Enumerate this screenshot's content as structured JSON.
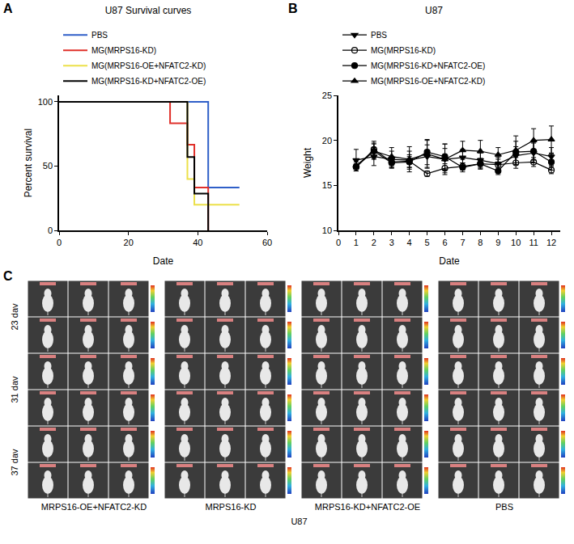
{
  "chart_data": [
    {
      "panel": "A",
      "type": "line",
      "title": "U87 Survival curves",
      "x_label": "Date",
      "y_label": "Percent survival",
      "xlim": [
        0,
        60
      ],
      "xticks": [
        0,
        20,
        40,
        60
      ],
      "ylim": [
        0,
        105
      ],
      "yticks": [
        0,
        50,
        100
      ],
      "line_style": "step",
      "legend": "top left",
      "grid": false,
      "series": [
        {
          "name": "PBS",
          "color": "#2f5fc8",
          "x": [
            0,
            43,
            52
          ],
          "values": [
            100,
            33.3,
            33.3
          ]
        },
        {
          "name": "MG(MRPS16-KD)",
          "color": "#e0302a",
          "x": [
            0,
            32,
            37,
            39,
            43
          ],
          "values": [
            100,
            83.3,
            66.7,
            33.3,
            0
          ]
        },
        {
          "name": "MG(MRPS16-OE+NFATC2-KD)",
          "color": "#ece04a",
          "x": [
            0,
            37,
            39,
            52
          ],
          "values": [
            100,
            40,
            20,
            20
          ]
        },
        {
          "name": "MG(MRPS16-KD+NFATC2-OE)",
          "color": "#000000",
          "x": [
            0,
            37,
            39,
            43
          ],
          "values": [
            100,
            57.1,
            28.6,
            0
          ]
        }
      ]
    },
    {
      "panel": "B",
      "type": "line",
      "title": "U87",
      "x_label": "Date",
      "y_label": "Weight",
      "xlim": [
        0,
        12.5
      ],
      "xticks": [
        0,
        1,
        2,
        3,
        4,
        5,
        6,
        7,
        8,
        9,
        10,
        11,
        12
      ],
      "ylim": [
        10,
        25
      ],
      "yticks": [
        10,
        15,
        20,
        25
      ],
      "legend": "top left",
      "grid": false,
      "color": "#000000",
      "x": [
        1,
        2,
        3,
        4,
        5,
        6,
        7,
        8,
        9,
        10,
        11,
        12
      ],
      "series": [
        {
          "name": "PBS",
          "marker": "triangle-down",
          "values": [
            17.8,
            18.2,
            17.9,
            17.8,
            18.2,
            17.9,
            18.1,
            17.8,
            17.4,
            18.3,
            18.6,
            18.2
          ],
          "errors": [
            1.2,
            1.0,
            0.9,
            1.0,
            1.3,
            1.2,
            0.9,
            0.8,
            0.7,
            1.0,
            1.1,
            1.0
          ]
        },
        {
          "name": "MG(MRPS16-KD)",
          "marker": "circle-open",
          "values": [
            17.0,
            19.0,
            17.6,
            17.7,
            16.3,
            16.9,
            17.1,
            17.4,
            17.3,
            17.5,
            17.6,
            16.7
          ],
          "errors": [
            0.4,
            0.9,
            0.6,
            0.7,
            0.3,
            0.5,
            0.4,
            0.5,
            0.6,
            0.6,
            0.5,
            0.4
          ]
        },
        {
          "name": "MG(MRPS16-KD+NFATC2-OE)",
          "marker": "circle",
          "values": [
            17.1,
            18.8,
            17.5,
            17.6,
            18.7,
            18.2,
            17.0,
            17.4,
            16.6,
            18.7,
            18.8,
            17.6
          ],
          "errors": [
            0.5,
            0.8,
            0.6,
            0.6,
            1.4,
            1.4,
            0.5,
            0.6,
            0.4,
            1.2,
            1.0,
            0.9
          ]
        },
        {
          "name": "MG(MRPS16-OE+NFATC2-KD)",
          "marker": "triangle-up",
          "values": [
            17.2,
            18.8,
            18.2,
            17.9,
            18.5,
            17.9,
            18.9,
            18.8,
            18.4,
            18.9,
            20.0,
            20.1
          ],
          "errors": [
            0.6,
            0.9,
            1.0,
            1.4,
            1.5,
            1.7,
            1.0,
            1.2,
            0.8,
            1.6,
            1.3,
            1.5
          ]
        }
      ]
    }
  ],
  "panel_c": {
    "panel": "C",
    "row_labels": [
      "23 dav",
      "31 dav",
      "37 dav"
    ],
    "groups": [
      "MRPS16-OE+NFATC2-KD",
      "MRPS16-KD",
      "MRPS16-KD+NFATC2-OE",
      "PBS"
    ],
    "caption": "U87"
  }
}
